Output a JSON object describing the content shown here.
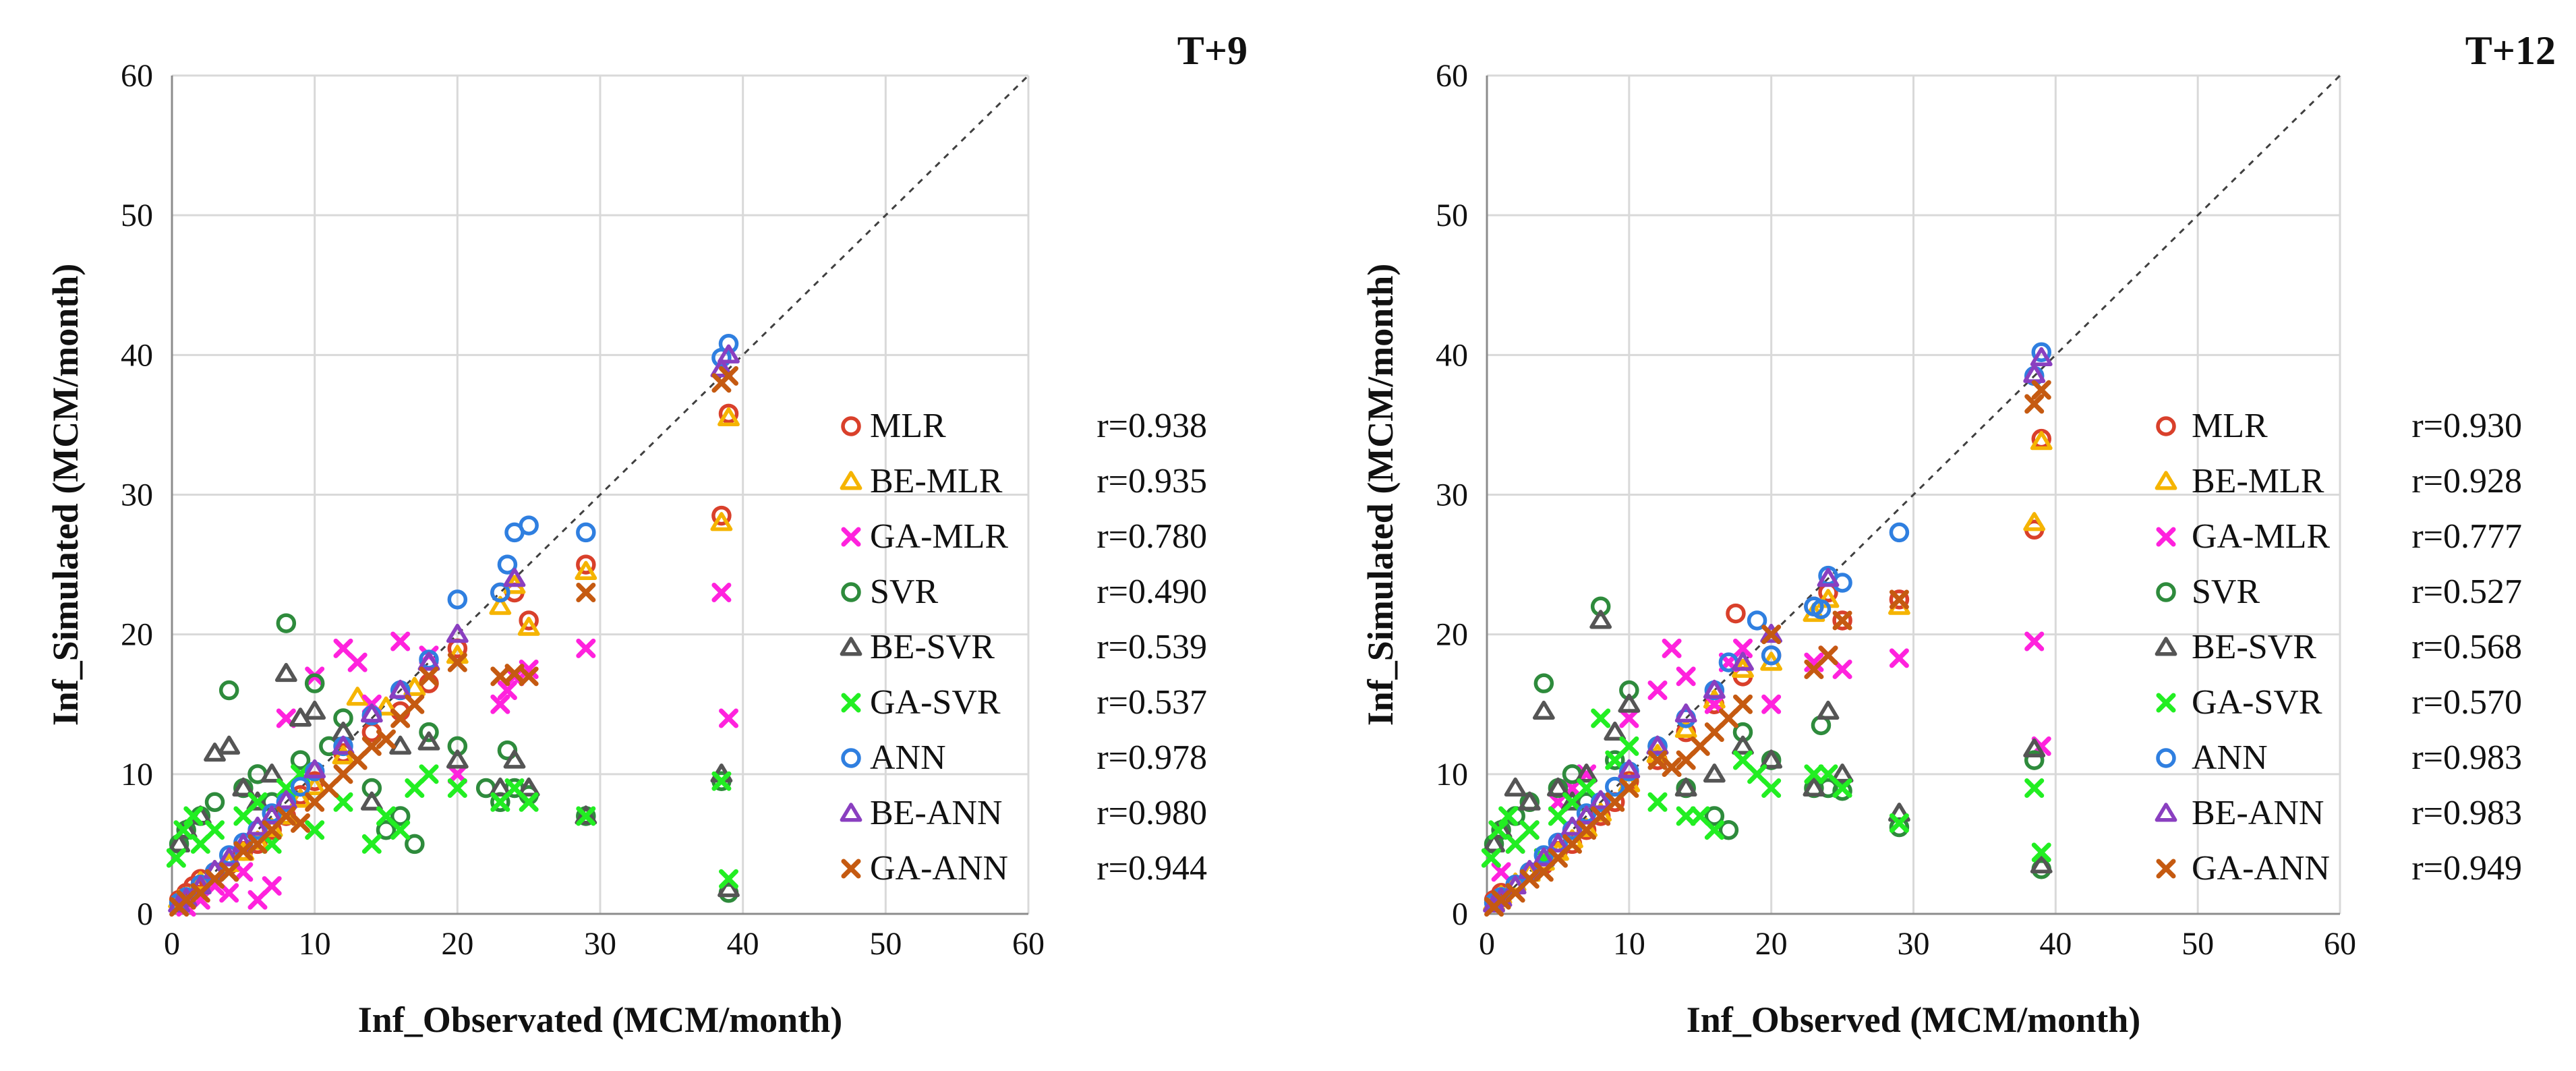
{
  "chart_data": [
    {
      "type": "scatter",
      "title": "T+9",
      "xlabel": "Inf_Observated (MCM/month)",
      "ylabel": "Inf_Simulated (MCM/month)",
      "xlim": [
        0,
        60
      ],
      "ylim": [
        0,
        60
      ],
      "xticks": [
        "0",
        "10",
        "20",
        "30",
        "40",
        "50",
        "60"
      ],
      "yticks": [
        "0",
        "10",
        "20",
        "30",
        "40",
        "50",
        "60"
      ],
      "legend_position": "right",
      "series": [
        {
          "name": "MLR",
          "r": "r=0.938",
          "marker": "circle",
          "color": "#d9402b",
          "x": [
            0.5,
            1,
            1.5,
            2,
            3,
            4,
            5,
            6,
            7,
            8,
            9,
            10,
            12,
            14,
            16,
            18,
            20,
            23,
            24,
            25,
            29,
            38.5,
            39
          ],
          "y": [
            1,
            1.5,
            2,
            2.5,
            3,
            3.5,
            4.5,
            5,
            6,
            7,
            8.5,
            9.5,
            11.5,
            13,
            14.5,
            16.5,
            19,
            23,
            23,
            21,
            25,
            28.5,
            35.8
          ]
        },
        {
          "name": "BE-MLR",
          "r": "r=0.935",
          "marker": "triangle",
          "color": "#f5b400",
          "x": [
            0.5,
            1,
            2,
            3,
            4,
            5,
            6,
            7,
            8,
            9,
            10,
            12,
            13,
            15,
            17,
            20,
            23,
            24,
            25,
            29,
            38.5,
            39
          ],
          "y": [
            1,
            1.2,
            2.3,
            3.1,
            3.6,
            4.4,
            5.2,
            6.1,
            7,
            8.2,
            9.1,
            11.3,
            15.5,
            14.8,
            16.2,
            18.5,
            22,
            23.5,
            20.5,
            24.5,
            28,
            35.5
          ]
        },
        {
          "name": "GA-MLR",
          "r": "r=0.780",
          "marker": "x",
          "color": "#ff22dd",
          "x": [
            1,
            2,
            3,
            4,
            5,
            6,
            7,
            8,
            10,
            12,
            13,
            14,
            16,
            18,
            20,
            23,
            23.5,
            24,
            25,
            29,
            38.5,
            39
          ],
          "y": [
            0.5,
            1,
            2,
            1.5,
            3,
            1,
            2,
            14,
            17,
            19,
            18,
            15,
            19.5,
            18.5,
            10,
            15,
            16,
            17,
            17.5,
            19,
            23,
            14
          ]
        },
        {
          "name": "SVR",
          "r": "r=0.490",
          "marker": "circle",
          "color": "#2e8b3c",
          "x": [
            0.5,
            1,
            2,
            3,
            4,
            5,
            6,
            7,
            8,
            9,
            10,
            11,
            12,
            14,
            15,
            16,
            17,
            18,
            20,
            22,
            23,
            23.5,
            24,
            25,
            29,
            38.5,
            39
          ],
          "y": [
            5,
            6,
            7,
            8,
            16,
            9,
            10,
            8,
            20.8,
            11,
            16.5,
            12,
            14,
            9,
            6,
            7,
            5,
            13,
            12,
            9,
            8,
            11.7,
            9,
            8.5,
            7,
            9.5,
            1.5
          ]
        },
        {
          "name": "BE-SVR",
          "r": "r=0.539",
          "marker": "triangle",
          "color": "#555555",
          "x": [
            0.5,
            1,
            2,
            3,
            4,
            5,
            6,
            7,
            8,
            9,
            10,
            12,
            14,
            16,
            18,
            20,
            23,
            24,
            25,
            29,
            38.5,
            39
          ],
          "y": [
            5,
            6,
            7,
            11.5,
            12,
            9,
            8,
            10,
            17.2,
            14,
            14.5,
            13,
            8,
            12,
            12.3,
            11,
            9,
            11,
            9,
            7,
            10,
            1.8
          ]
        },
        {
          "name": "GA-SVR",
          "r": "r=0.537",
          "marker": "x",
          "color": "#22ee22",
          "x": [
            0.3,
            0.8,
            1.5,
            2,
            3,
            4,
            5,
            6,
            7,
            8,
            9,
            10,
            12,
            14,
            15,
            16,
            17,
            18,
            20,
            23,
            24,
            25,
            29,
            38.5,
            39
          ],
          "y": [
            4,
            6,
            7,
            5,
            6,
            3,
            7,
            8,
            5,
            9,
            10,
            6,
            8,
            5,
            7,
            6,
            9,
            10,
            9,
            8,
            9,
            8,
            7,
            9.5,
            2.5
          ]
        },
        {
          "name": "ANN",
          "r": "r=0.978",
          "marker": "circle",
          "color": "#2f7fe0",
          "x": [
            0.5,
            1,
            2,
            3,
            4,
            5,
            6,
            7,
            8,
            9,
            10,
            12,
            14,
            16,
            18,
            20,
            23,
            23.5,
            24,
            25,
            29,
            38.5,
            39
          ],
          "y": [
            0.8,
            1.2,
            2.1,
            3,
            4.2,
            5.1,
            6,
            7.2,
            8,
            9.1,
            10.2,
            12,
            14.2,
            16,
            18.2,
            22.5,
            23,
            25,
            27.3,
            27.8,
            27.3,
            39.8,
            40.8
          ]
        },
        {
          "name": "BE-ANN",
          "r": "r=0.980",
          "marker": "triangle",
          "color": "#8a3fc0",
          "x": [
            0.5,
            1,
            2,
            3,
            4,
            5,
            6,
            7,
            8,
            10,
            12,
            14,
            16,
            18,
            20,
            24,
            38.5,
            39
          ],
          "y": [
            0.7,
            1.1,
            2,
            3.1,
            4,
            5,
            6.2,
            7,
            8.1,
            10.3,
            12,
            14.3,
            16,
            18,
            20,
            24,
            39,
            40
          ]
        },
        {
          "name": "GA-ANN",
          "r": "r=0.944",
          "marker": "x",
          "color": "#c55a11",
          "x": [
            0.5,
            1,
            2,
            3,
            4,
            5,
            6,
            7,
            8,
            9,
            10,
            11,
            12,
            13,
            14,
            15,
            16,
            17,
            18,
            20,
            23,
            24,
            25,
            29,
            38.5,
            39
          ],
          "y": [
            0.5,
            1,
            1.5,
            2.5,
            3,
            4.5,
            5,
            6,
            7,
            6.5,
            8,
            9,
            10,
            11,
            12,
            12.5,
            14,
            15,
            17,
            18,
            17,
            17.2,
            17,
            23,
            38,
            38.5
          ]
        }
      ]
    },
    {
      "type": "scatter",
      "title": "T+12",
      "xlabel": "Inf_Observed (MCM/month)",
      "ylabel": "Inf_Simulated (MCM/month)",
      "xlim": [
        0,
        60
      ],
      "ylim": [
        0,
        60
      ],
      "xticks": [
        "0",
        "10",
        "20",
        "30",
        "40",
        "50",
        "60"
      ],
      "yticks": [
        "0",
        "10",
        "20",
        "30",
        "40",
        "50",
        "60"
      ],
      "legend_position": "right",
      "series": [
        {
          "name": "MLR",
          "r": "r=0.930",
          "marker": "circle",
          "color": "#d9402b",
          "x": [
            0.5,
            1,
            2,
            3,
            4,
            5,
            6,
            7,
            8,
            9,
            10,
            12,
            14,
            16,
            17.5,
            18,
            20,
            23,
            24,
            25,
            29,
            38.5,
            39
          ],
          "y": [
            1,
            1.5,
            2,
            3,
            3.5,
            4.5,
            5,
            6,
            7,
            8,
            9.5,
            11,
            13,
            15,
            21.5,
            17,
            18.5,
            22,
            23,
            21,
            22.5,
            27.5,
            34
          ]
        },
        {
          "name": "BE-MLR",
          "r": "r=0.928",
          "marker": "triangle",
          "color": "#f5b400",
          "x": [
            0.5,
            1,
            2,
            3,
            4,
            5,
            6,
            7,
            8,
            10,
            12,
            14,
            16,
            18,
            20,
            23,
            24,
            29,
            38.5,
            39
          ],
          "y": [
            0.8,
            1.3,
            2.2,
            2.9,
            3.7,
            4.4,
            5.3,
            6.1,
            7.2,
            9.3,
            11.4,
            13.2,
            15.3,
            17.5,
            18,
            21.5,
            22.5,
            22,
            28,
            33.8
          ]
        },
        {
          "name": "GA-MLR",
          "r": "r=0.777",
          "marker": "x",
          "color": "#ff22dd",
          "x": [
            1,
            2,
            3,
            4,
            5,
            6,
            7,
            8,
            10,
            12,
            13,
            14,
            16,
            17,
            18,
            20,
            23,
            24,
            25,
            29,
            38.5,
            39
          ],
          "y": [
            3,
            5,
            6,
            4,
            8,
            9,
            10,
            7,
            14,
            16,
            19,
            17,
            15,
            18,
            19,
            15,
            18,
            18.5,
            17.5,
            18.3,
            19.5,
            12
          ]
        },
        {
          "name": "SVR",
          "r": "r=0.527",
          "marker": "circle",
          "color": "#2e8b3c",
          "x": [
            0.5,
            1,
            2,
            3,
            4,
            5,
            6,
            7,
            8,
            9,
            10,
            12,
            14,
            16,
            17,
            18,
            20,
            23,
            23.5,
            24,
            25,
            29,
            38.5,
            39
          ],
          "y": [
            5,
            6,
            7,
            8,
            16.5,
            9,
            10,
            8,
            22,
            11,
            16,
            12,
            9,
            7,
            6,
            13,
            11,
            9,
            13.5,
            9,
            8.8,
            6.2,
            11,
            3.2
          ]
        },
        {
          "name": "BE-SVR",
          "r": "r=0.568",
          "marker": "triangle",
          "color": "#555555",
          "x": [
            0.5,
            1,
            2,
            3,
            4,
            5,
            6,
            7,
            8,
            9,
            10,
            12,
            14,
            16,
            18,
            20,
            23,
            24,
            25,
            29,
            38.5,
            39
          ],
          "y": [
            5,
            6,
            9,
            8,
            14.5,
            9,
            8,
            10,
            21,
            13,
            15,
            12,
            9,
            10,
            12,
            11,
            9,
            14.5,
            10,
            7.2,
            11.8,
            3.5
          ]
        },
        {
          "name": "GA-SVR",
          "r": "r=0.570",
          "marker": "x",
          "color": "#22ee22",
          "x": [
            0.3,
            0.8,
            1.5,
            2,
            3,
            4,
            5,
            6,
            7,
            8,
            9,
            10,
            12,
            14,
            15,
            16,
            18,
            19,
            20,
            23,
            24,
            25,
            29,
            38.5,
            39
          ],
          "y": [
            4,
            6,
            7,
            5,
            6,
            4,
            7,
            8,
            9,
            14,
            11,
            12,
            8,
            7,
            7,
            6,
            11,
            10,
            9,
            10,
            10,
            9,
            6.5,
            9,
            4.4
          ]
        },
        {
          "name": "ANN",
          "r": "r=0.983",
          "marker": "circle",
          "color": "#2f7fe0",
          "x": [
            0.5,
            1,
            2,
            3,
            4,
            5,
            6,
            7,
            8,
            9,
            10,
            12,
            14,
            16,
            17,
            19,
            20,
            23,
            23.5,
            24,
            25,
            29,
            38.5,
            39
          ],
          "y": [
            0.8,
            1.2,
            2.1,
            3,
            4.2,
            5.1,
            6,
            7.2,
            8,
            9.1,
            10.2,
            12,
            14,
            16,
            18,
            21,
            18.5,
            22,
            21.8,
            24.2,
            23.7,
            27.3,
            38.5,
            40.2
          ]
        },
        {
          "name": "BE-ANN",
          "r": "r=0.983",
          "marker": "triangle",
          "color": "#8a3fc0",
          "x": [
            0.5,
            1,
            2,
            3,
            4,
            5,
            6,
            7,
            8,
            10,
            12,
            14,
            16,
            18,
            20,
            24,
            38.5,
            39
          ],
          "y": [
            0.7,
            1.1,
            2,
            3.1,
            4,
            5,
            6.2,
            7,
            8.1,
            10.3,
            12,
            14.3,
            16,
            18,
            20,
            24,
            38.6,
            39.8
          ]
        },
        {
          "name": "GA-ANN",
          "r": "r=0.949",
          "marker": "x",
          "color": "#c55a11",
          "x": [
            0.5,
            1,
            2,
            3,
            4,
            5,
            6,
            7,
            8,
            9,
            10,
            12,
            13,
            14,
            15,
            16,
            17,
            18,
            20,
            23,
            24,
            25,
            29,
            38.5,
            39
          ],
          "y": [
            0.5,
            1,
            1.5,
            2.5,
            3,
            4,
            5,
            6,
            7,
            8,
            9,
            11,
            10.5,
            11,
            12,
            13,
            14,
            15,
            20,
            17.5,
            18.5,
            21,
            22.5,
            36.5,
            37.5
          ]
        }
      ]
    }
  ]
}
